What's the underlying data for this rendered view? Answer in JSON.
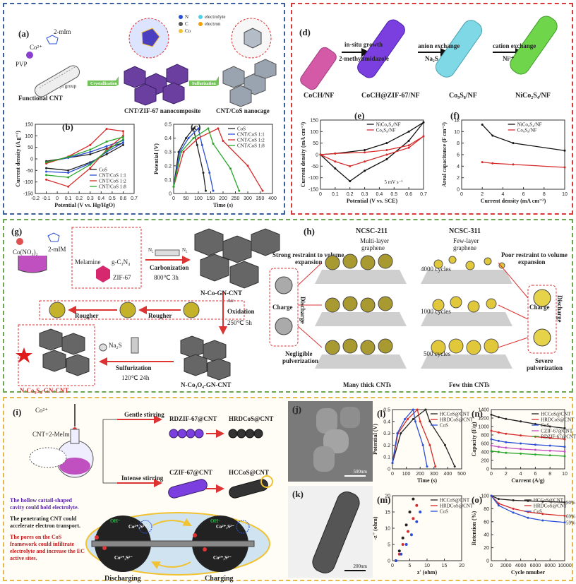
{
  "panel_a": {
    "label": "(a)",
    "co2": "Co²⁺",
    "mim": "2-mIm",
    "pvp": "PVP",
    "carboxyl": "Carboxyl group",
    "functional_cnt": "Functional CNT",
    "arrow1": "Crystallization",
    "arrow2": "Sulfurization",
    "composite": "CNT/ZIF-67 nanocomposite",
    "nanocage": "CNT/CoS nanocage",
    "legend_n": "N",
    "legend_c": "C",
    "legend_co": "Co",
    "legend_electrolyte": "electrolyte",
    "legend_electron": "electron"
  },
  "panel_b_label": "(b)",
  "panel_c_label": "(c)",
  "panel_d": {
    "label": "(d)",
    "step1a": "in-situ growth",
    "step1b": "2-methylimidazole",
    "step2": "anion exchange",
    "step2b": "Na₂S",
    "step3": "cation exchange",
    "step3b": "Ni²⁺",
    "s1": "CoCH/NF",
    "s2": "CoCH@ZIF-67/NF",
    "s3": "Co₉S₈/NF",
    "s4": "NiCo₂S₄/NF",
    "colors": [
      "#d45aa8",
      "#7b3fe0",
      "#7fd8e6",
      "#6fd64b"
    ]
  },
  "panel_e_label": "(e)",
  "panel_f_label": "(f)",
  "panel_g": {
    "label": "(g)",
    "cono3": "Co(NO₃)₂",
    "mim": "2-mIM",
    "melamine": "Melamine",
    "gc3n4": "g-C₃N₄",
    "zif": "ZIF-67",
    "carbonization": "Carbonization",
    "carb_cond": "800℃  3h",
    "n2a": "N₂",
    "n2b": "N₂",
    "nco": "N-Co-GN-CNT",
    "air": "Air",
    "oxidation": "Oxidation",
    "ox_cond": "250℃  5h",
    "rougher1": "Rougher",
    "rougher2": "Rougher",
    "na2s": "Na₂S",
    "sulfurization": "Sulfurization",
    "sulf_cond": "120℃  24h",
    "nco3o4": "N-Co₃O₄-GN-CNT",
    "ncos": "N-Co₃S₄-GN-CNT"
  },
  "panel_h": {
    "label": "(h)",
    "ncsc211": "NCSC-211",
    "ncsc311": "NCSC-311",
    "multi": "Multi-layer",
    "multi2": "graphene",
    "few": "Few-layer",
    "few2": "graphene",
    "strong": "Strong restraint to volume",
    "strong2": "expansion",
    "poor": "Poor restraint to volume",
    "poor2": "expansion",
    "c4000": "4000 cycles",
    "c1000": "1000 cycles",
    "c500": "500 cycles",
    "charge": "Charge",
    "discharge": "Discharge",
    "negligible": "Negligible",
    "negligible2": "pulverization",
    "severe": "Severe",
    "severe2": "pulverization",
    "many": "Many thick CNTs",
    "fewthin": "Few thin CNTs"
  },
  "panel_i": {
    "label": "(i)",
    "co2": "Co²⁺",
    "cnt": "CNT+2-MeIm",
    "gentle": "Gentle stirring",
    "intense": "Intense stirring",
    "rdzif": "RDZIF-67@CNT",
    "hrdcos": "HRDCoS@CNT",
    "czif": "CZIF-67@CNT",
    "hccos": "HCCoS@CNT",
    "note1": "The hollow cattail-shaped cavity could hold electrolyte.",
    "note2": "The penetrating CNT could accelerate electron transport.",
    "note3": "The pores on the CoS framework could infiltrate electrolyte and increase the EC active sites.",
    "discharging": "Discharging",
    "charging": "Charging",
    "oh": "OH⁻",
    "ion": "Co²⁺,S²⁻"
  },
  "panel_j": {
    "label": "(j)",
    "scale": "500nm"
  },
  "panel_k": {
    "label": "(k)",
    "scale": "200nm"
  },
  "panel_l_label": "(l)",
  "panel_m_label": "(m)",
  "panel_n_label": "(n)",
  "panel_o_label": "(o)",
  "chart_data": [
    {
      "id": "b",
      "type": "line",
      "xlabel": "Potential (V vs. Hg/HgO)",
      "ylabel": "Current density (A g⁻¹)",
      "xlim": [
        -0.2,
        0.7
      ],
      "ylim": [
        -150,
        150
      ],
      "xticks": [
        -0.2,
        -0.1,
        0.0,
        0.1,
        0.2,
        0.3,
        0.4,
        0.5,
        0.6,
        0.7
      ],
      "yticks": [
        -150,
        -100,
        -50,
        0,
        50,
        100,
        150
      ],
      "series": [
        {
          "name": "CoS",
          "color": "#222222",
          "x": [
            -0.1,
            0.1,
            0.3,
            0.45,
            0.6,
            0.6,
            0.45,
            0.3,
            0.1,
            -0.1
          ],
          "y": [
            -10,
            5,
            20,
            45,
            70,
            60,
            20,
            -15,
            -50,
            -40
          ]
        },
        {
          "name": "CNT/CoS 1:1",
          "color": "#2a4fd6",
          "x": [
            -0.1,
            0.1,
            0.3,
            0.45,
            0.6,
            0.6,
            0.45,
            0.3,
            0.1,
            -0.1
          ],
          "y": [
            -15,
            5,
            30,
            55,
            80,
            70,
            30,
            -20,
            -60,
            -55
          ]
        },
        {
          "name": "CNT/CoS 1:2",
          "color": "#d62a2a",
          "x": [
            -0.1,
            0.1,
            0.3,
            0.45,
            0.6,
            0.6,
            0.45,
            0.3,
            0.1,
            -0.1
          ],
          "y": [
            -20,
            10,
            60,
            130,
            120,
            100,
            40,
            -40,
            -120,
            -90
          ]
        },
        {
          "name": "CNT/CoS 1:8",
          "color": "#28a628",
          "x": [
            -0.1,
            0.1,
            0.3,
            0.45,
            0.6,
            0.6,
            0.45,
            0.3,
            0.1,
            -0.1
          ],
          "y": [
            -15,
            8,
            40,
            75,
            95,
            85,
            35,
            -25,
            -80,
            -70
          ]
        }
      ]
    },
    {
      "id": "c",
      "type": "line",
      "xlabel": "Time (s)",
      "ylabel": "Potential (V)",
      "xlim": [
        0,
        400
      ],
      "ylim": [
        0,
        0.5
      ],
      "xticks": [
        0,
        50,
        100,
        150,
        200,
        250,
        300,
        350,
        400
      ],
      "yticks": [
        0.0,
        0.1,
        0.2,
        0.3,
        0.4,
        0.5
      ],
      "series": [
        {
          "name": "CoS",
          "color": "#222222",
          "x": [
            0,
            20,
            50,
            80,
            95,
            120,
            130
          ],
          "y": [
            0.05,
            0.3,
            0.4,
            0.47,
            0.35,
            0.15,
            0.02
          ]
        },
        {
          "name": "CNT/CoS 1:1",
          "color": "#2a4fd6",
          "x": [
            0,
            25,
            60,
            100,
            115,
            145,
            160
          ],
          "y": [
            0.05,
            0.3,
            0.4,
            0.47,
            0.35,
            0.15,
            0.02
          ]
        },
        {
          "name": "CNT/CoS 1:2",
          "color": "#d62a2a",
          "x": [
            0,
            40,
            100,
            180,
            200,
            300,
            360
          ],
          "y": [
            0.05,
            0.3,
            0.4,
            0.47,
            0.38,
            0.2,
            0.02
          ]
        },
        {
          "name": "CNT/CoS 1:8",
          "color": "#28a628",
          "x": [
            0,
            30,
            80,
            140,
            160,
            230,
            265
          ],
          "y": [
            0.05,
            0.3,
            0.4,
            0.47,
            0.36,
            0.18,
            0.02
          ]
        }
      ]
    },
    {
      "id": "e",
      "type": "line",
      "xlabel": "Potential (V vs. SCE)",
      "ylabel": "Current density (mA cm⁻²)",
      "xlim": [
        0.0,
        0.7
      ],
      "ylim": [
        -150,
        150
      ],
      "xticks": [
        0.0,
        0.1,
        0.2,
        0.3,
        0.4,
        0.5,
        0.6,
        0.7
      ],
      "yticks": [
        -150,
        -100,
        -50,
        0,
        50,
        100,
        150
      ],
      "annotation": "5 mV s⁻¹",
      "series": [
        {
          "name": "NiCo₂S₄/NF",
          "color": "#111111",
          "x": [
            0.0,
            0.1,
            0.3,
            0.45,
            0.6,
            0.7,
            0.6,
            0.45,
            0.3,
            0.2,
            0.1,
            0.0
          ],
          "y": [
            0,
            5,
            20,
            50,
            100,
            140,
            60,
            -20,
            -70,
            -115,
            -60,
            0
          ]
        },
        {
          "name": "Co₉S₈/NF",
          "color": "#d62a2a",
          "x": [
            0.0,
            0.1,
            0.3,
            0.45,
            0.6,
            0.7,
            0.6,
            0.45,
            0.3,
            0.2,
            0.1,
            0.0
          ],
          "y": [
            0,
            5,
            10,
            20,
            40,
            80,
            30,
            0,
            -30,
            -50,
            -30,
            0
          ]
        }
      ]
    },
    {
      "id": "f",
      "type": "line",
      "xlabel": "Current density (mA cm⁻²)",
      "ylabel": "Areal capacitance (F cm⁻²)",
      "xlim": [
        0,
        10
      ],
      "ylim": [
        0,
        12
      ],
      "xticks": [
        0,
        2,
        4,
        6,
        8,
        10
      ],
      "yticks": [
        0,
        2,
        4,
        6,
        8,
        10,
        12
      ],
      "series": [
        {
          "name": "NiCo₂S₄/NF",
          "color": "#111111",
          "x": [
            2,
            3,
            5,
            10
          ],
          "y": [
            11.2,
            9.3,
            8.0,
            6.7
          ]
        },
        {
          "name": "Co₉S₈/NF",
          "color": "#d62a2a",
          "x": [
            2,
            3,
            5,
            10
          ],
          "y": [
            4.7,
            4.5,
            4.3,
            3.8
          ]
        }
      ]
    },
    {
      "id": "l",
      "type": "line",
      "xlabel": "Time (s)",
      "ylabel": "Potential (V)",
      "xlim": [
        0,
        500
      ],
      "ylim": [
        0,
        0.5
      ],
      "xticks": [
        0,
        100,
        200,
        300,
        400,
        500
      ],
      "yticks": [
        0.0,
        0.1,
        0.2,
        0.3,
        0.4,
        0.5
      ],
      "series": [
        {
          "name": "HCCoS@CNT",
          "color": "#222222",
          "x": [
            0,
            60,
            150,
            240,
            270,
            380,
            450
          ],
          "y": [
            0.05,
            0.3,
            0.42,
            0.5,
            0.4,
            0.2,
            0.02
          ]
        },
        {
          "name": "HRDCoS@CNT",
          "color": "#d62a2a",
          "x": [
            0,
            40,
            110,
            180,
            200,
            270,
            310
          ],
          "y": [
            0.05,
            0.3,
            0.42,
            0.5,
            0.4,
            0.2,
            0.02
          ]
        },
        {
          "name": "CoS",
          "color": "#2a4fd6",
          "x": [
            0,
            35,
            90,
            150,
            165,
            220,
            250
          ],
          "y": [
            0.05,
            0.3,
            0.42,
            0.5,
            0.4,
            0.2,
            0.02
          ]
        }
      ]
    },
    {
      "id": "m",
      "type": "scatter",
      "xlabel": "z' (ohm)",
      "ylabel": "-z'' (ohm)",
      "xlim": [
        0,
        20
      ],
      "ylim": [
        0,
        20
      ],
      "xticks": [
        0,
        5,
        10,
        15,
        20
      ],
      "yticks": [
        0,
        5,
        10,
        15,
        20
      ],
      "series": [
        {
          "name": "HCCoS@CNT",
          "color": "#222222",
          "x": [
            1,
            2,
            3,
            4,
            5,
            6
          ],
          "y": [
            0,
            3,
            7,
            11,
            15,
            19
          ]
        },
        {
          "name": "HRDCoS@CNT",
          "color": "#d62a2a",
          "x": [
            1,
            2,
            3,
            4.5,
            6,
            7
          ],
          "y": [
            0,
            2,
            5,
            9,
            13,
            17
          ]
        },
        {
          "name": "CoS",
          "color": "#2a4fd6",
          "x": [
            1,
            2.5,
            4,
            5.5,
            7,
            8
          ],
          "y": [
            0,
            2,
            5,
            8,
            12,
            15
          ]
        }
      ]
    },
    {
      "id": "n",
      "type": "line",
      "xlabel": "Current (A/g)",
      "ylabel": "Capacity (F/g)",
      "xlim": [
        0,
        10
      ],
      "ylim": [
        0,
        1400
      ],
      "xticks": [
        0,
        2,
        4,
        6,
        8,
        10
      ],
      "yticks": [
        0,
        200,
        400,
        600,
        800,
        1000,
        1200,
        1400
      ],
      "series": [
        {
          "name": "HCCoS@CNT",
          "color": "#222222",
          "x": [
            0,
            1,
            2,
            4,
            6,
            8,
            10
          ],
          "y": [
            1280,
            1220,
            1180,
            1120,
            1060,
            1000,
            960
          ]
        },
        {
          "name": "HRDCoS@CNT",
          "color": "#d62a2a",
          "x": [
            0,
            1,
            2,
            4,
            6,
            8,
            10
          ],
          "y": [
            900,
            860,
            830,
            790,
            760,
            730,
            700
          ]
        },
        {
          "name": "CoS",
          "color": "#2a4fd6",
          "x": [
            0,
            1,
            2,
            4,
            6,
            8,
            10
          ],
          "y": [
            700,
            660,
            630,
            600,
            570,
            550,
            520
          ]
        },
        {
          "name": "CZIF-67@CNT",
          "color": "#c24fc2",
          "x": [
            0,
            1,
            2,
            4,
            6,
            8,
            10
          ],
          "y": [
            550,
            520,
            500,
            470,
            450,
            430,
            410
          ]
        },
        {
          "name": "RDZIF-67@CNT",
          "color": "#28a628",
          "x": [
            0,
            1,
            2,
            4,
            6,
            8,
            10
          ],
          "y": [
            420,
            400,
            380,
            360,
            340,
            320,
            300
          ]
        }
      ]
    },
    {
      "id": "o",
      "type": "line",
      "xlabel": "Cycle nmuber",
      "ylabel": "Retention (%)",
      "xlim": [
        0,
        10000
      ],
      "ylim": [
        0,
        100
      ],
      "xticks": [
        0,
        2000,
        4000,
        6000,
        8000,
        10000
      ],
      "yticks": [
        0,
        20,
        40,
        60,
        80,
        100
      ],
      "end_labels": [
        "90%",
        "69%",
        "59%"
      ],
      "series": [
        {
          "name": "HCCoS@CNT",
          "color": "#222222",
          "x": [
            0,
            1000,
            3000,
            5000,
            7000,
            10000
          ],
          "y": [
            100,
            95,
            93,
            92,
            91,
            90
          ]
        },
        {
          "name": "HRDCoS@CNT",
          "color": "#d62a2a",
          "x": [
            0,
            1000,
            3000,
            5000,
            7000,
            10000
          ],
          "y": [
            100,
            88,
            80,
            75,
            72,
            69
          ]
        },
        {
          "name": "CoS",
          "color": "#2a4fd6",
          "x": [
            0,
            1000,
            3000,
            5000,
            7000,
            10000
          ],
          "y": [
            100,
            85,
            74,
            66,
            62,
            59
          ]
        }
      ]
    }
  ]
}
